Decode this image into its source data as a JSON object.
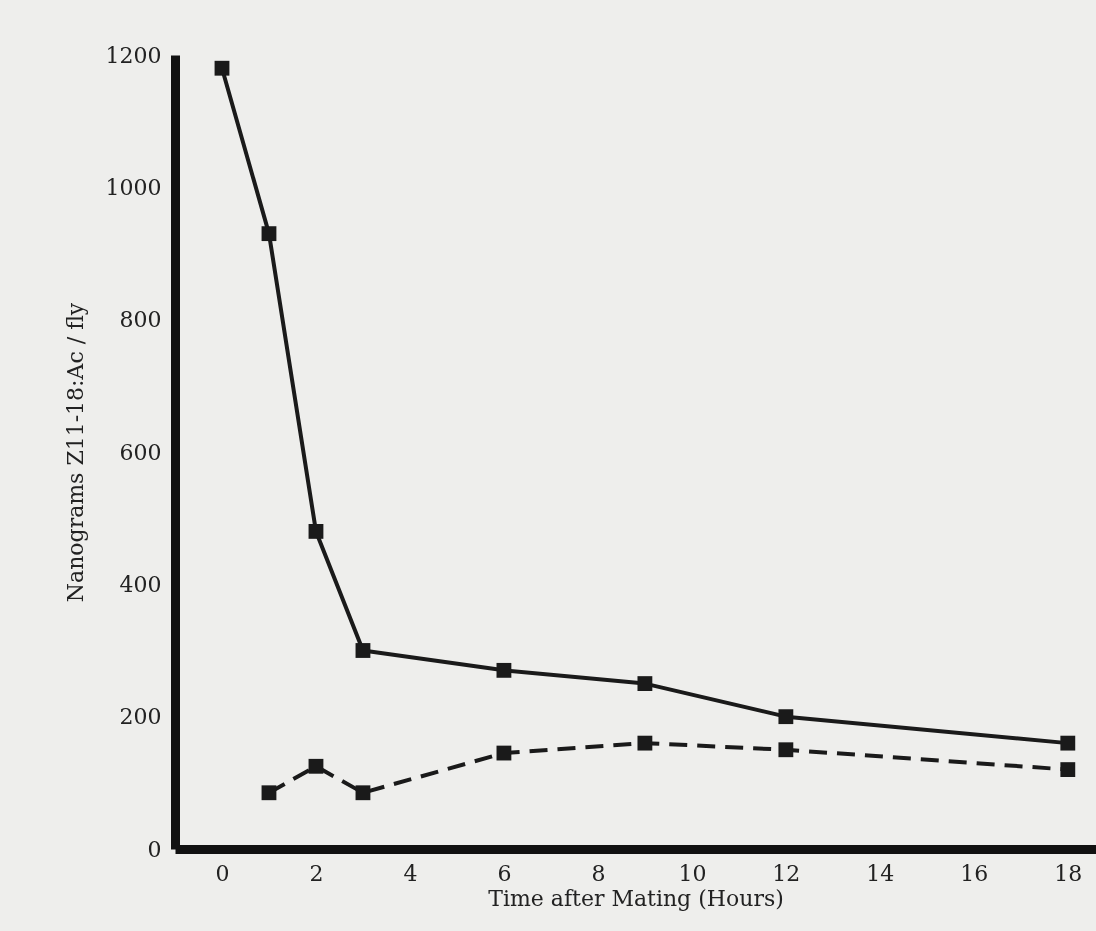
{
  "chart_data": {
    "type": "line",
    "xlabel": "Time after Mating (Hours)",
    "ylabel": "Nanograms Z11-18:Ac / fly",
    "xlim": [
      -1,
      18.6
    ],
    "xticks": [
      0,
      2,
      4,
      6,
      8,
      10,
      12,
      14,
      16,
      18
    ],
    "ylim": [
      0,
      1200
    ],
    "yticks": [
      0,
      200,
      400,
      600,
      800,
      1000,
      1200
    ],
    "grid": false,
    "marker": "square",
    "series": [
      {
        "color": "#1a1a1a",
        "line_style": "solid",
        "x": [
          0,
          1,
          2,
          3,
          6,
          9,
          12,
          18
        ],
        "values": [
          1180,
          930,
          480,
          300,
          270,
          250,
          200,
          160
        ]
      },
      {
        "color": "#1a1a1a",
        "line_style": "dashed",
        "x": [
          1,
          2,
          3,
          6,
          9,
          12,
          18
        ],
        "values": [
          85,
          125,
          85,
          145,
          160,
          150,
          120
        ]
      }
    ]
  }
}
